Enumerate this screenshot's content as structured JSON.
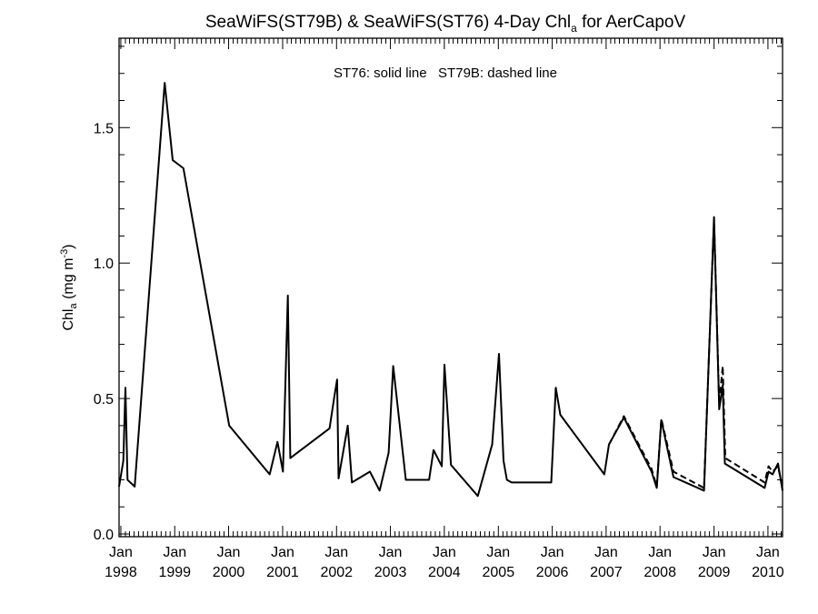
{
  "chart_data": {
    "type": "line",
    "title": {
      "prefix": "SeaWiFS(ST79B) & SeaWiFS(ST76) 4-Day Chl",
      "subscript": "a",
      "suffix": " for AerCapoV"
    },
    "ylabel": {
      "prefix": "Chl",
      "subscript": "a",
      "middle": " (mg m",
      "superscript": "-3",
      "suffix": ")"
    },
    "annotation": "ST76: solid line   ST79B: dashed line",
    "xlim": [
      "1997-12-20",
      "2010-04-10"
    ],
    "ylim": [
      -0.01,
      1.83
    ],
    "y_ticks": [
      0.0,
      0.5,
      1.0,
      1.5
    ],
    "y_tick_labels": [
      "0.0",
      "0.5",
      "1.0",
      "1.5"
    ],
    "x_ticks": [
      {
        "date": "1998-01-01",
        "month": "Jan",
        "year": "1998"
      },
      {
        "date": "1999-01-01",
        "month": "Jan",
        "year": "1999"
      },
      {
        "date": "2000-01-01",
        "month": "Jan",
        "year": "2000"
      },
      {
        "date": "2001-01-01",
        "month": "Jan",
        "year": "2001"
      },
      {
        "date": "2002-01-01",
        "month": "Jan",
        "year": "2002"
      },
      {
        "date": "2003-01-01",
        "month": "Jan",
        "year": "2003"
      },
      {
        "date": "2004-01-01",
        "month": "Jan",
        "year": "2004"
      },
      {
        "date": "2005-01-01",
        "month": "Jan",
        "year": "2005"
      },
      {
        "date": "2006-01-01",
        "month": "Jan",
        "year": "2006"
      },
      {
        "date": "2007-01-01",
        "month": "Jan",
        "year": "2007"
      },
      {
        "date": "2008-01-01",
        "month": "Jan",
        "year": "2008"
      },
      {
        "date": "2009-01-01",
        "month": "Jan",
        "year": "2009"
      },
      {
        "date": "2010-01-01",
        "month": "Jan",
        "year": "2010"
      }
    ],
    "series": [
      {
        "name": "ST76",
        "style": "solid",
        "color": "#000000",
        "points": [
          [
            "1997-12-20",
            0.175
          ],
          [
            "1998-01-18",
            0.27
          ],
          [
            "1998-02-01",
            0.54
          ],
          [
            "1998-02-15",
            0.2
          ],
          [
            "1998-04-05",
            0.175
          ],
          [
            "1998-10-25",
            1.665
          ],
          [
            "1998-12-18",
            1.38
          ],
          [
            "1999-03-01",
            1.35
          ],
          [
            "2000-01-05",
            0.4
          ],
          [
            "2000-10-05",
            0.22
          ],
          [
            "2000-11-27",
            0.34
          ],
          [
            "2001-01-03",
            0.23
          ],
          [
            "2001-02-05",
            0.88
          ],
          [
            "2001-02-22",
            0.28
          ],
          [
            "2001-11-15",
            0.39
          ],
          [
            "2001-12-18",
            0.51
          ],
          [
            "2002-01-05",
            0.57
          ],
          [
            "2002-01-15",
            0.205
          ],
          [
            "2002-03-18",
            0.4
          ],
          [
            "2002-04-15",
            0.19
          ],
          [
            "2002-08-15",
            0.23
          ],
          [
            "2002-10-20",
            0.16
          ],
          [
            "2002-12-20",
            0.3
          ],
          [
            "2003-01-20",
            0.62
          ],
          [
            "2003-04-15",
            0.2
          ],
          [
            "2003-09-20",
            0.2
          ],
          [
            "2003-10-20",
            0.31
          ],
          [
            "2003-12-15",
            0.25
          ],
          [
            "2004-01-02",
            0.625
          ],
          [
            "2004-02-15",
            0.255
          ],
          [
            "2004-08-15",
            0.14
          ],
          [
            "2004-11-20",
            0.33
          ],
          [
            "2005-01-05",
            0.665
          ],
          [
            "2005-02-05",
            0.27
          ],
          [
            "2005-02-28",
            0.2
          ],
          [
            "2005-04-01",
            0.19
          ],
          [
            "2005-12-25",
            0.19
          ],
          [
            "2006-01-25",
            0.54
          ],
          [
            "2006-02-25",
            0.44
          ],
          [
            "2006-12-20",
            0.22
          ],
          [
            "2007-01-20",
            0.33
          ],
          [
            "2007-05-01",
            0.43
          ],
          [
            "2007-11-05",
            0.23
          ],
          [
            "2007-12-10",
            0.17
          ],
          [
            "2008-01-10",
            0.42
          ],
          [
            "2008-04-01",
            0.21
          ],
          [
            "2008-10-25",
            0.16
          ],
          [
            "2009-01-01",
            1.17
          ],
          [
            "2009-02-05",
            0.46
          ],
          [
            "2009-03-01",
            0.55
          ],
          [
            "2009-03-15",
            0.26
          ],
          [
            "2009-12-10",
            0.17
          ],
          [
            "2010-01-05",
            0.23
          ],
          [
            "2010-02-01",
            0.22
          ],
          [
            "2010-03-10",
            0.26
          ],
          [
            "2010-04-10",
            0.16
          ]
        ]
      },
      {
        "name": "ST79B",
        "style": "dashed",
        "color": "#000000",
        "points": [
          [
            "2007-01-20",
            0.33
          ],
          [
            "2007-05-01",
            0.435
          ],
          [
            "2007-11-05",
            0.24
          ],
          [
            "2007-12-10",
            0.175
          ],
          [
            "2008-01-10",
            0.425
          ],
          [
            "2008-04-01",
            0.23
          ],
          [
            "2008-10-25",
            0.17
          ],
          [
            "2009-01-01",
            1.16
          ],
          [
            "2009-02-05",
            0.48
          ],
          [
            "2009-03-01",
            0.62
          ],
          [
            "2009-03-18",
            0.28
          ],
          [
            "2009-12-10",
            0.19
          ],
          [
            "2010-01-05",
            0.25
          ],
          [
            "2010-02-01",
            0.23
          ],
          [
            "2010-03-10",
            0.25
          ],
          [
            "2010-04-10",
            0.17
          ]
        ]
      }
    ]
  }
}
